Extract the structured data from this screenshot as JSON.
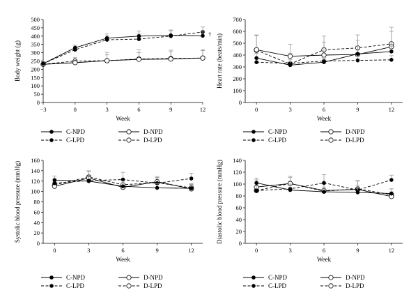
{
  "chart_data": [
    {
      "type": "line",
      "title": "",
      "xlabel": "Week",
      "ylabel": "Body weight (g)",
      "x": [
        -3,
        0,
        3,
        6,
        9,
        12
      ],
      "x_tick_labels": [
        "−3",
        "0",
        "3",
        "6",
        "9",
        "12"
      ],
      "xlim": [
        -3,
        12
      ],
      "ylim": [
        0,
        500
      ],
      "y_ticks": [
        0,
        50,
        100,
        150,
        200,
        250,
        300,
        350,
        400,
        450,
        500
      ],
      "annotation": "†",
      "series": [
        {
          "name": "C-NPD",
          "values": [
            234,
            330,
            388,
            400,
            405,
            402
          ],
          "error": [
            12,
            15,
            25,
            30,
            32,
            30
          ]
        },
        {
          "name": "C-LPD",
          "values": [
            234,
            318,
            378,
            382,
            400,
            425
          ],
          "error": [
            12,
            15,
            25,
            30,
            32,
            30
          ]
        },
        {
          "name": "D-NPD",
          "values": [
            230,
            240,
            252,
            260,
            262,
            268
          ],
          "error": [
            10,
            15,
            35,
            40,
            45,
            45
          ]
        },
        {
          "name": "D-LPD",
          "values": [
            230,
            250,
            252,
            262,
            265,
            268
          ],
          "error": [
            10,
            20,
            50,
            55,
            50,
            50
          ]
        }
      ]
    },
    {
      "type": "line",
      "title": "",
      "xlabel": "Week",
      "ylabel": "Heart rate (beats/min)",
      "x": [
        0,
        3,
        6,
        9,
        12
      ],
      "x_tick_labels": [
        "0",
        "3",
        "6",
        "9",
        "12"
      ],
      "xlim": [
        -1,
        13
      ],
      "ylim": [
        0,
        700
      ],
      "y_ticks": [
        0,
        100,
        200,
        300,
        400,
        500,
        600,
        700
      ],
      "series": [
        {
          "name": "C-NPD",
          "values": [
            375,
            315,
            340,
            410,
            430
          ],
          "error": [
            40,
            30,
            30,
            40,
            45
          ]
        },
        {
          "name": "C-LPD",
          "values": [
            340,
            330,
            350,
            355,
            360
          ],
          "error": [
            35,
            30,
            30,
            35,
            35
          ]
        },
        {
          "name": "D-NPD",
          "values": [
            445,
            390,
            400,
            405,
            470
          ],
          "error": [
            120,
            100,
            110,
            120,
            130
          ]
        },
        {
          "name": "D-LPD",
          "values": [
            440,
            325,
            445,
            460,
            495
          ],
          "error": [
            130,
            90,
            115,
            110,
            140
          ]
        }
      ]
    },
    {
      "type": "line",
      "title": "",
      "xlabel": "Week",
      "ylabel": "Systolic blood pressure (mmHg)",
      "x": [
        0,
        3,
        6,
        9,
        12
      ],
      "x_tick_labels": [
        "0",
        "3",
        "6",
        "9",
        "12"
      ],
      "xlim": [
        -1,
        13
      ],
      "ylim": [
        0,
        160
      ],
      "y_ticks": [
        0,
        20,
        40,
        60,
        80,
        100,
        120,
        140,
        160
      ],
      "series": [
        {
          "name": "C-NPD",
          "values": [
            122,
            120,
            110,
            107,
            106
          ],
          "error": [
            8,
            8,
            10,
            8,
            8
          ]
        },
        {
          "name": "C-LPD",
          "values": [
            116,
            121,
            123,
            116,
            125
          ],
          "error": [
            8,
            8,
            14,
            10,
            10
          ]
        },
        {
          "name": "D-NPD",
          "values": [
            110,
            126,
            108,
            119,
            105
          ],
          "error": [
            8,
            12,
            8,
            10,
            8
          ]
        },
        {
          "name": "D-LPD",
          "values": [
            113,
            128,
            113,
            117,
            107
          ],
          "error": [
            8,
            12,
            10,
            10,
            8
          ]
        }
      ]
    },
    {
      "type": "line",
      "title": "",
      "xlabel": "Week",
      "ylabel": "Diastolic blood pressure (mmHg)",
      "x": [
        0,
        3,
        6,
        9,
        12
      ],
      "x_tick_labels": [
        "0",
        "3",
        "6",
        "9",
        "12"
      ],
      "xlim": [
        -1,
        13
      ],
      "ylim": [
        0,
        140
      ],
      "y_ticks": [
        0,
        20,
        40,
        60,
        80,
        100,
        120,
        140
      ],
      "series": [
        {
          "name": "C-NPD",
          "values": [
            102,
            90,
            87,
            86,
            84
          ],
          "error": [
            8,
            8,
            8,
            8,
            8
          ]
        },
        {
          "name": "C-LPD",
          "values": [
            89,
            92,
            102,
            90,
            107
          ],
          "error": [
            8,
            8,
            14,
            8,
            8
          ]
        },
        {
          "name": "D-NPD",
          "values": [
            95,
            101,
            89,
            91,
            79
          ],
          "error": [
            12,
            12,
            12,
            14,
            8
          ]
        },
        {
          "name": "D-LPD",
          "values": [
            89,
            101,
            88,
            92,
            82
          ],
          "error": [
            12,
            10,
            12,
            14,
            10
          ]
        }
      ]
    }
  ],
  "legend": {
    "entries": [
      "C-NPD",
      "D-NPD",
      "C-LPD",
      "D-LPD"
    ]
  },
  "style": {
    "series_styles": {
      "C-NPD": {
        "marker": "filled-circle",
        "line": "solid",
        "color": "#000000"
      },
      "C-LPD": {
        "marker": "filled-circle",
        "line": "dashed",
        "color": "#000000"
      },
      "D-NPD": {
        "marker": "open-circle",
        "line": "solid",
        "color": "#000000"
      },
      "D-LPD": {
        "marker": "open-circle",
        "line": "dashed",
        "color": "#000000"
      }
    },
    "errorbar_color": "#999999"
  }
}
